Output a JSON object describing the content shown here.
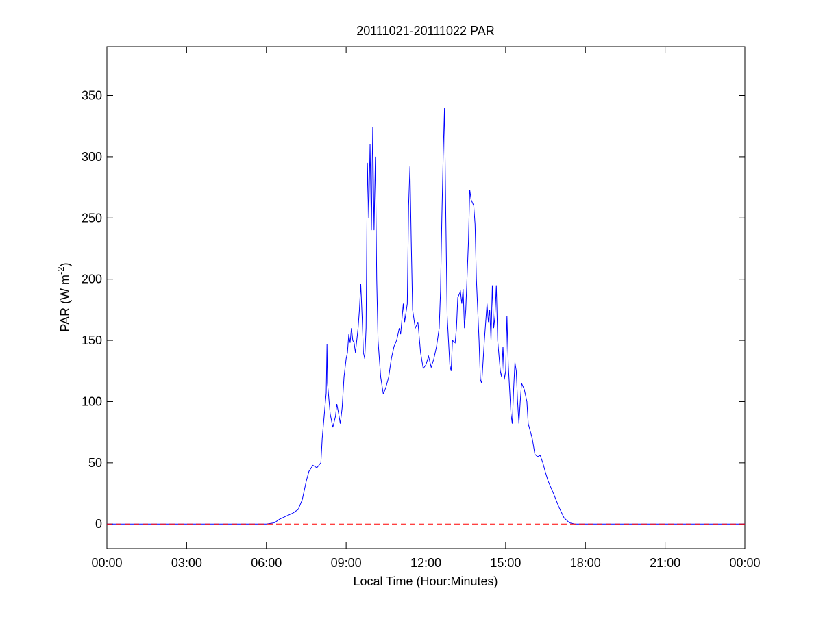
{
  "chart_data": {
    "type": "line",
    "title": "20111021-20111022 PAR",
    "xlabel": "Local Time (Hour:Minutes)",
    "ylabel": {
      "text": "PAR (W m",
      "superscript": "-2",
      "suffix": ")"
    },
    "xlim": [
      0,
      24
    ],
    "xticks": [
      {
        "value": 0,
        "label": "00:00"
      },
      {
        "value": 3,
        "label": "03:00"
      },
      {
        "value": 6,
        "label": "06:00"
      },
      {
        "value": 9,
        "label": "09:00"
      },
      {
        "value": 12,
        "label": "12:00"
      },
      {
        "value": 15,
        "label": "15:00"
      },
      {
        "value": 18,
        "label": "18:00"
      },
      {
        "value": 21,
        "label": "21:00"
      },
      {
        "value": 24,
        "label": "00:00"
      }
    ],
    "ylim": [
      -20,
      390
    ],
    "yticks": [
      0,
      50,
      100,
      150,
      200,
      250,
      300,
      350
    ],
    "grid": false,
    "reference_line": {
      "value": 0,
      "color": "#ff0000",
      "style": "dashed"
    },
    "x": [
      0,
      6.0,
      6.3,
      6.5,
      6.8,
      7.0,
      7.2,
      7.35,
      7.5,
      7.6,
      7.75,
      7.9,
      8.05,
      8.1,
      8.2,
      8.25,
      8.28,
      8.3,
      8.4,
      8.5,
      8.6,
      8.65,
      8.72,
      8.78,
      8.85,
      8.92,
      9.0,
      9.05,
      9.1,
      9.15,
      9.2,
      9.25,
      9.3,
      9.35,
      9.45,
      9.5,
      9.55,
      9.6,
      9.65,
      9.7,
      9.75,
      9.8,
      9.85,
      9.9,
      9.95,
      10.0,
      10.05,
      10.1,
      10.15,
      10.2,
      10.3,
      10.4,
      10.5,
      10.6,
      10.7,
      10.8,
      10.9,
      11.0,
      11.05,
      11.15,
      11.2,
      11.3,
      11.35,
      11.4,
      11.45,
      11.5,
      11.6,
      11.7,
      11.8,
      11.9,
      12.0,
      12.1,
      12.2,
      12.3,
      12.4,
      12.5,
      12.55,
      12.6,
      12.65,
      12.7,
      12.75,
      12.8,
      12.9,
      12.95,
      13.0,
      13.1,
      13.15,
      13.2,
      13.3,
      13.35,
      13.4,
      13.45,
      13.5,
      13.6,
      13.65,
      13.7,
      13.8,
      13.85,
      13.9,
      14.0,
      14.05,
      14.1,
      14.2,
      14.3,
      14.35,
      14.4,
      14.45,
      14.5,
      14.55,
      14.6,
      14.65,
      14.7,
      14.8,
      14.85,
      14.9,
      14.95,
      15.0,
      15.05,
      15.1,
      15.2,
      15.25,
      15.3,
      15.35,
      15.4,
      15.45,
      15.5,
      15.55,
      15.6,
      15.7,
      15.8,
      15.85,
      16.0,
      16.1,
      16.2,
      16.3,
      16.4,
      16.5,
      16.6,
      16.8,
      17.0,
      17.2,
      17.4,
      17.6,
      24
    ],
    "series": [
      {
        "color": "#0000ff",
        "values": [
          0,
          0,
          1,
          4,
          7,
          9,
          12,
          20,
          35,
          43,
          48,
          46,
          50,
          70,
          95,
          107,
          147,
          115,
          90,
          79,
          88,
          98,
          90,
          82,
          95,
          120,
          135,
          140,
          155,
          148,
          160,
          150,
          148,
          140,
          160,
          175,
          196,
          170,
          140,
          135,
          160,
          295,
          250,
          310,
          240,
          324,
          240,
          300,
          200,
          150,
          120,
          106,
          112,
          120,
          135,
          145,
          150,
          160,
          155,
          180,
          165,
          180,
          260,
          292,
          230,
          175,
          160,
          165,
          140,
          127,
          130,
          137,
          128,
          135,
          145,
          160,
          190,
          250,
          300,
          340,
          250,
          170,
          130,
          125,
          150,
          148,
          160,
          185,
          190,
          180,
          192,
          160,
          175,
          230,
          273,
          265,
          260,
          245,
          200,
          150,
          118,
          115,
          150,
          180,
          165,
          175,
          150,
          195,
          160,
          170,
          195,
          150,
          125,
          120,
          145,
          118,
          125,
          170,
          130,
          90,
          82,
          110,
          132,
          125,
          100,
          82,
          100,
          115,
          110,
          100,
          82,
          70,
          57,
          55,
          56,
          50,
          42,
          35,
          25,
          14,
          5,
          1,
          0,
          0
        ]
      }
    ]
  }
}
